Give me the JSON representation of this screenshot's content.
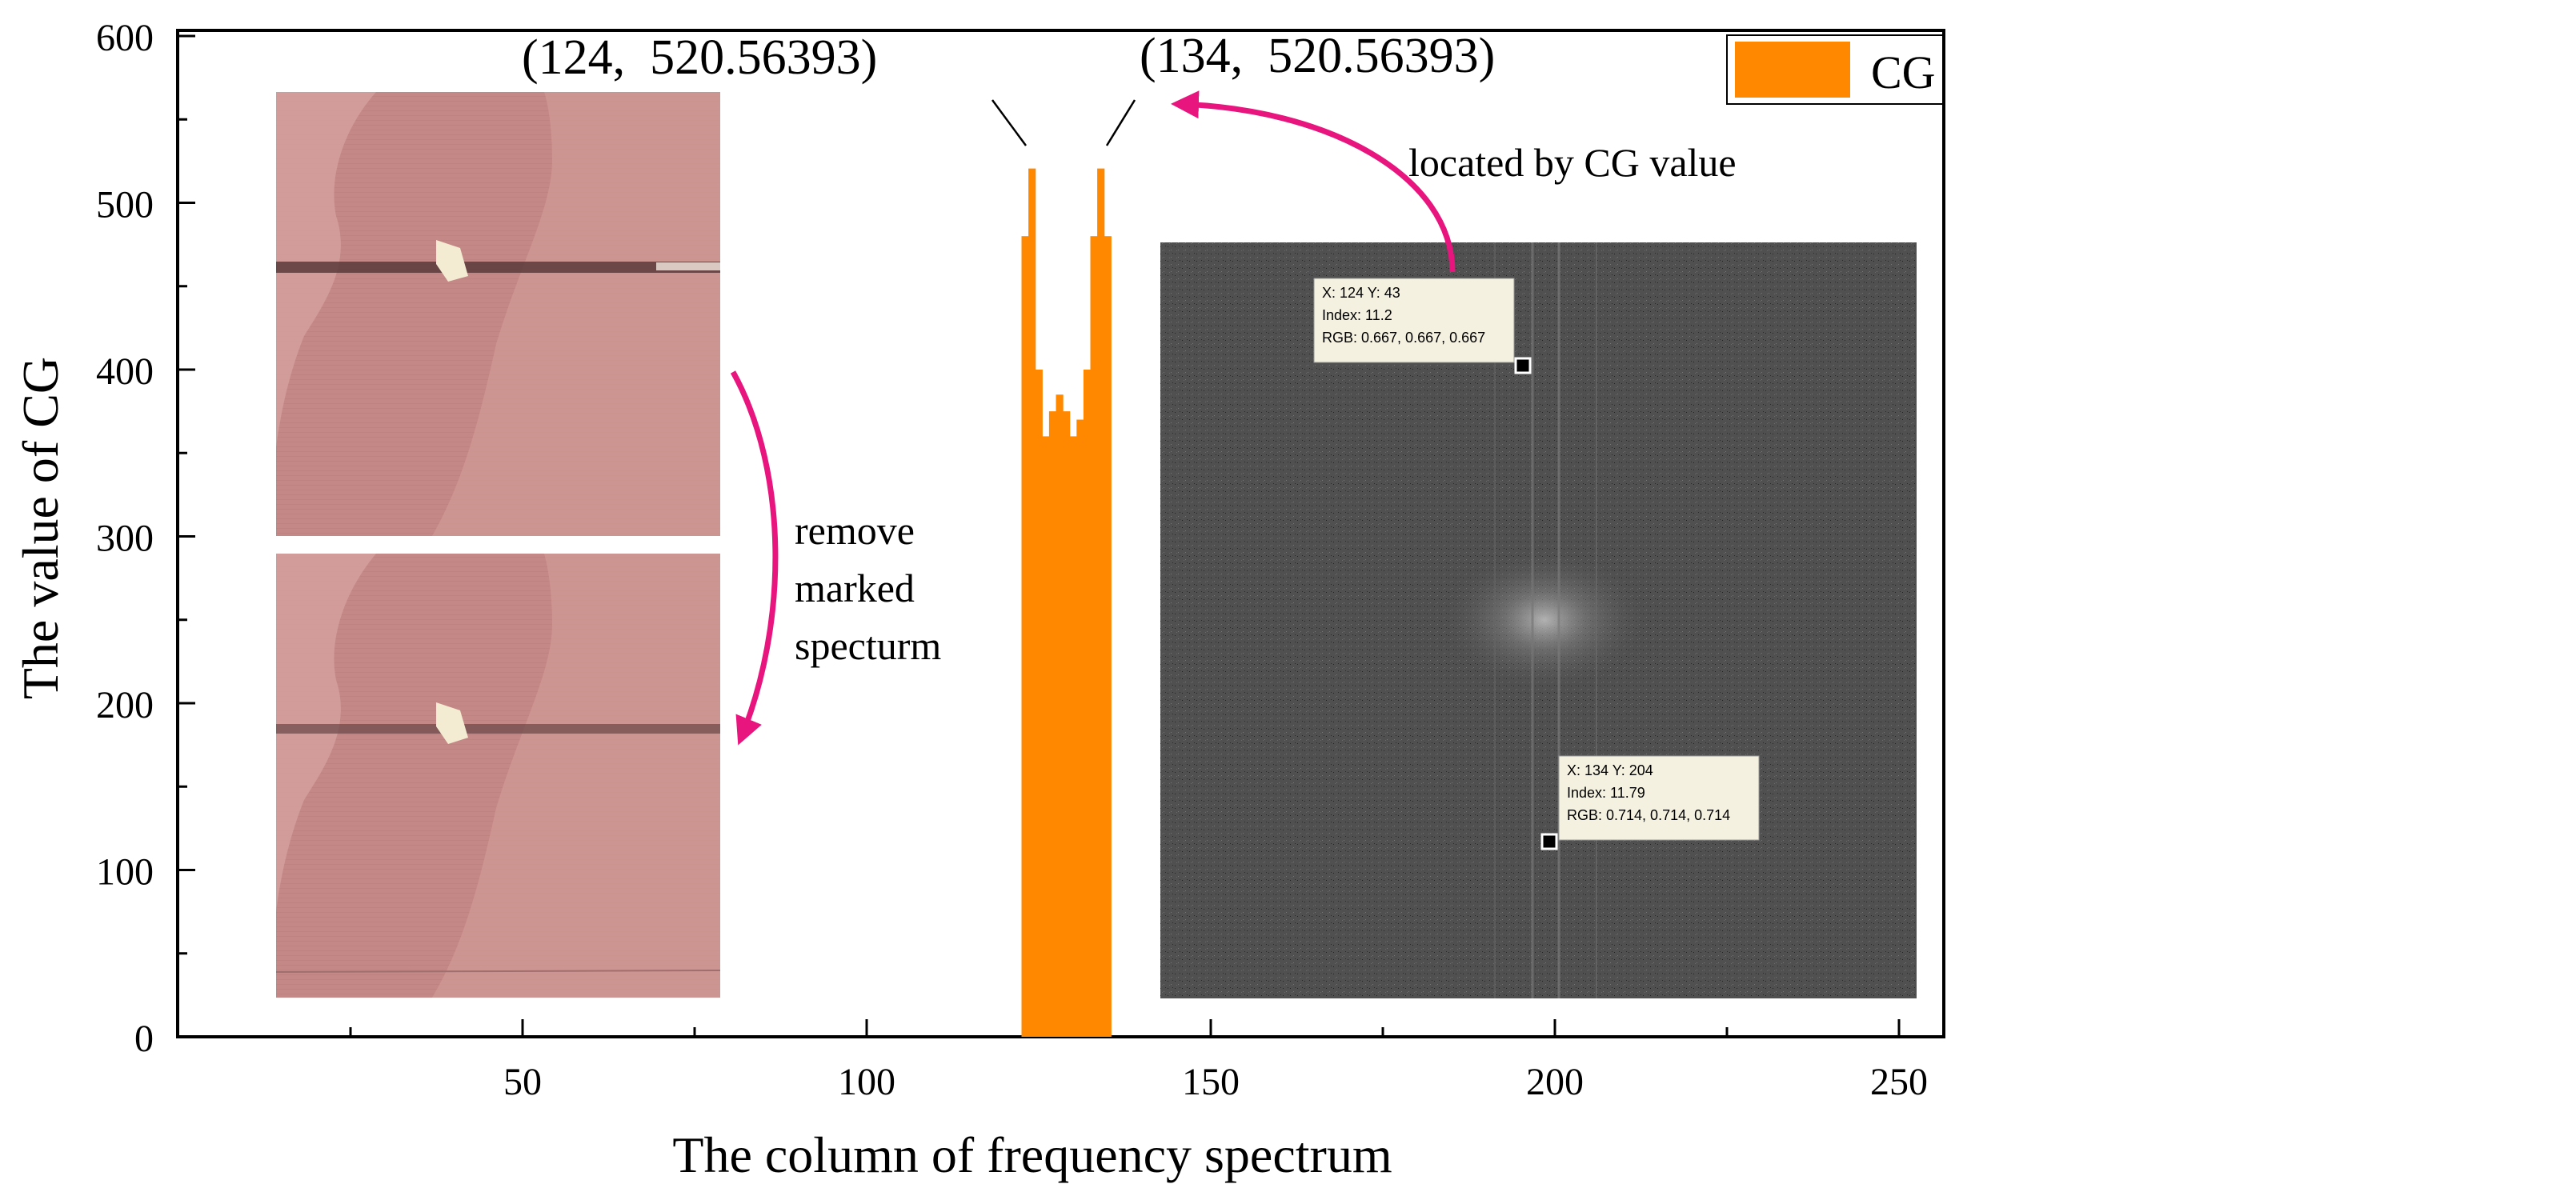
{
  "chart_data": {
    "type": "bar",
    "xlabel": "The column of frequency spectrum",
    "ylabel": "The value of CG",
    "xlim": [
      0,
      256
    ],
    "ylim": [
      0,
      600
    ],
    "xticks": [
      50,
      100,
      150,
      200,
      250
    ],
    "yticks": [
      0,
      100,
      200,
      300,
      400,
      500,
      600
    ],
    "legend": {
      "position": "top-right"
    },
    "series": [
      {
        "name": "CG",
        "color": "#FF8800",
        "x": [
          123,
          124,
          125,
          126,
          127,
          128,
          129,
          130,
          131,
          132,
          133,
          134,
          135
        ],
        "values": [
          480,
          520.56393,
          400,
          360,
          375,
          385,
          375,
          360,
          370,
          400,
          480,
          520.56393,
          480
        ]
      }
    ],
    "peak_labels": [
      {
        "text": "(124,  520.56393)",
        "x": 124,
        "y": 520.56393
      },
      {
        "text": "(134,  520.56393)",
        "x": 134,
        "y": 520.56393
      }
    ],
    "annotations": {
      "remove": "remove marked specturm",
      "located": "located by CG value"
    }
  },
  "inset_images": [
    {
      "name": "original-afm-image",
      "description": "AFM image with horizontal noise stripe"
    },
    {
      "name": "filtered-afm-image",
      "description": "AFM image after removing marked spectrum"
    },
    {
      "name": "frequency-spectrum-image",
      "description": "grayscale 2D frequency spectrum"
    }
  ],
  "datatips": [
    {
      "line1": "X: 124 Y: 43",
      "line2": "Index: 11.2",
      "line3": "RGB: 0.667, 0.667, 0.667"
    },
    {
      "line1": "X: 134 Y: 204",
      "line2": "Index: 11.79",
      "line3": "RGB: 0.714, 0.714, 0.714"
    }
  ],
  "colors": {
    "bar": "#FF8800",
    "arrow": "#E8157E",
    "afm": "#C98E8C",
    "spectrum": "#4E4E4E"
  }
}
